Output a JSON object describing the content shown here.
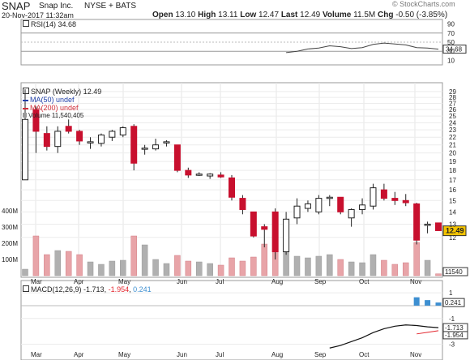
{
  "header": {
    "symbol": "SNAP",
    "company": "Snap Inc.",
    "exchange": "NYSE + BATS",
    "date": "20-Nov-2017 11:32am",
    "open_label": "Open",
    "open": "13.10",
    "high_label": "High",
    "high": "13.11",
    "low_label": "Low",
    "low": "12.47",
    "last_label": "Last",
    "last": "12.49",
    "volume_label": "Volume",
    "volume": "11.5M",
    "chg_label": "Chg",
    "chg": "-0.50 (-3.85%)",
    "watermark": "© StockCharts.com"
  },
  "rsi": {
    "legend": "RSI(14) 34.68",
    "current": "34.68"
  },
  "price": {
    "legend": "SNAP (Weekly) 12.49",
    "last_box": "12.49",
    "last_box_color": "#f5c400"
  },
  "ma50": {
    "legend": "MA(50) undef",
    "color": "#1f3fa8"
  },
  "ma200": {
    "legend": "MA(200) undef",
    "color": "#d0303a"
  },
  "volume": {
    "legend": "Volume 11,540,405",
    "box": "11540"
  },
  "macd": {
    "legend_name": "MACD(12,26,9)",
    "macd": "-1.713",
    "signal": "-1.954",
    "hist": "0.241",
    "box_hist": "0.241",
    "box_macd": "-1.713",
    "box_signal": "-1.954"
  },
  "colors": {
    "up": "#222222",
    "down": "#c8102e",
    "vol_up": "#b0b0b0",
    "vol_down": "#e8a4a8",
    "hist": "#3d8fd1",
    "signal": "#e3262e"
  },
  "chart_data": {
    "type": "candlestick",
    "title": "SNAP Snap Inc. NYSE + BATS",
    "x_tick_labels": [
      "Mar",
      "Apr",
      "May",
      "Jun",
      "Jul",
      "Aug",
      "Sep",
      "Oct",
      "Nov"
    ],
    "price_axis_ticks": [
      "29",
      "28",
      "27",
      "26",
      "25",
      "24",
      "23",
      "22",
      "21",
      "20",
      "19",
      "18",
      "17",
      "16",
      "15",
      "14",
      "13",
      "12"
    ],
    "volume_axis_ticks": [
      "400M",
      "300M",
      "200M",
      "100M"
    ],
    "rsi_axis_ticks": [
      "90",
      "70",
      "50",
      "30",
      "10"
    ],
    "macd_axis_ticks": [
      "1",
      "-1",
      "-3"
    ],
    "price_scale": "log",
    "weekly_bars": [
      {
        "o": 17.0,
        "h": 29.4,
        "l": 17.0,
        "c": 24.5,
        "v": 40
      },
      {
        "o": 26.0,
        "h": 26.5,
        "l": 20.0,
        "c": 22.8,
        "v": 245
      },
      {
        "o": 22.5,
        "h": 23.5,
        "l": 20.3,
        "c": 20.8,
        "v": 130
      },
      {
        "o": 20.8,
        "h": 23.5,
        "l": 20.0,
        "c": 22.8,
        "v": 155
      },
      {
        "o": 23.5,
        "h": 24.5,
        "l": 22.5,
        "c": 22.8,
        "v": 150
      },
      {
        "o": 22.8,
        "h": 23.0,
        "l": 21.0,
        "c": 21.5,
        "v": 130
      },
      {
        "o": 21.3,
        "h": 22.0,
        "l": 20.5,
        "c": 21.4,
        "v": 85
      },
      {
        "o": 21.2,
        "h": 22.5,
        "l": 20.8,
        "c": 22.3,
        "v": 70
      },
      {
        "o": 22.0,
        "h": 23.0,
        "l": 21.5,
        "c": 22.8,
        "v": 90
      },
      {
        "o": 22.3,
        "h": 23.5,
        "l": 22.0,
        "c": 23.3,
        "v": 95
      },
      {
        "o": 23.5,
        "h": 23.8,
        "l": 18.0,
        "c": 18.8,
        "v": 245
      },
      {
        "o": 20.5,
        "h": 21.0,
        "l": 19.8,
        "c": 20.6,
        "v": 190
      },
      {
        "o": 20.5,
        "h": 21.8,
        "l": 20.3,
        "c": 21.0,
        "v": 100
      },
      {
        "o": 21.3,
        "h": 21.6,
        "l": 20.8,
        "c": 21.4,
        "v": 75
      },
      {
        "o": 21.0,
        "h": 21.0,
        "l": 17.8,
        "c": 18.0,
        "v": 125
      },
      {
        "o": 18.0,
        "h": 18.3,
        "l": 17.2,
        "c": 17.5,
        "v": 90
      },
      {
        "o": 17.5,
        "h": 17.8,
        "l": 17.4,
        "c": 17.6,
        "v": 85
      },
      {
        "o": 17.4,
        "h": 17.7,
        "l": 17.1,
        "c": 17.6,
        "v": 75
      },
      {
        "o": 17.5,
        "h": 17.8,
        "l": 17.2,
        "c": 17.3,
        "v": 65
      },
      {
        "o": 17.2,
        "h": 17.5,
        "l": 15.0,
        "c": 15.3,
        "v": 110
      },
      {
        "o": 15.2,
        "h": 15.5,
        "l": 13.8,
        "c": 14.2,
        "v": 90
      },
      {
        "o": 14.0,
        "h": 14.0,
        "l": 12.0,
        "c": 12.1,
        "v": 115
      },
      {
        "o": 12.8,
        "h": 13.0,
        "l": 11.3,
        "c": 12.6,
        "v": 195
      },
      {
        "o": 14.0,
        "h": 14.3,
        "l": 10.5,
        "c": 11.0,
        "v": 250
      },
      {
        "o": 11.0,
        "h": 14.0,
        "l": 10.8,
        "c": 13.4,
        "v": 195
      },
      {
        "o": 13.5,
        "h": 15.2,
        "l": 13.0,
        "c": 14.5,
        "v": 120
      },
      {
        "o": 14.3,
        "h": 15.0,
        "l": 14.0,
        "c": 14.7,
        "v": 110
      },
      {
        "o": 14.0,
        "h": 15.5,
        "l": 13.8,
        "c": 15.2,
        "v": 120
      },
      {
        "o": 15.2,
        "h": 15.5,
        "l": 14.5,
        "c": 15.3,
        "v": 130
      },
      {
        "o": 15.3,
        "h": 15.3,
        "l": 13.8,
        "c": 14.0,
        "v": 100
      },
      {
        "o": 13.5,
        "h": 14.3,
        "l": 12.8,
        "c": 14.2,
        "v": 85
      },
      {
        "o": 14.2,
        "h": 15.2,
        "l": 13.8,
        "c": 14.6,
        "v": 80
      },
      {
        "o": 14.5,
        "h": 16.6,
        "l": 14.2,
        "c": 16.2,
        "v": 130
      },
      {
        "o": 16.0,
        "h": 16.6,
        "l": 15.0,
        "c": 15.2,
        "v": 95
      },
      {
        "o": 15.2,
        "h": 15.8,
        "l": 14.6,
        "c": 15.0,
        "v": 70
      },
      {
        "o": 15.0,
        "h": 15.6,
        "l": 14.5,
        "c": 14.8,
        "v": 80
      },
      {
        "o": 14.7,
        "h": 14.8,
        "l": 11.5,
        "c": 11.8,
        "v": 205
      },
      {
        "o": 13.0,
        "h": 13.2,
        "l": 12.3,
        "c": 13.0,
        "v": 95
      },
      {
        "o": 13.1,
        "h": 13.1,
        "l": 12.5,
        "c": 12.5,
        "v": 11.5
      }
    ],
    "rsi_values": [
      null,
      null,
      null,
      null,
      null,
      null,
      null,
      null,
      null,
      null,
      null,
      null,
      null,
      null,
      null,
      null,
      null,
      null,
      null,
      null,
      null,
      null,
      null,
      null,
      27,
      30,
      35,
      37,
      42,
      40,
      36,
      38,
      45,
      48,
      46,
      44,
      38,
      37,
      34.68
    ],
    "macd_line": [
      null,
      null,
      null,
      null,
      null,
      null,
      null,
      null,
      null,
      null,
      null,
      null,
      null,
      null,
      null,
      null,
      null,
      null,
      null,
      null,
      null,
      null,
      null,
      null,
      null,
      null,
      null,
      null,
      -3.3,
      -3.1,
      -2.8,
      -2.5,
      -2.1,
      -1.8,
      -1.6,
      -1.5,
      -1.55,
      -1.65,
      -1.713
    ],
    "signal_line": [
      null,
      null,
      null,
      null,
      null,
      null,
      null,
      null,
      null,
      null,
      null,
      null,
      null,
      null,
      null,
      null,
      null,
      null,
      null,
      null,
      null,
      null,
      null,
      null,
      null,
      null,
      null,
      null,
      null,
      null,
      null,
      null,
      null,
      null,
      null,
      null,
      -2.2,
      -2.08,
      -1.954
    ],
    "histogram": [
      null,
      null,
      null,
      null,
      null,
      null,
      null,
      null,
      null,
      null,
      null,
      null,
      null,
      null,
      null,
      null,
      null,
      null,
      null,
      null,
      null,
      null,
      null,
      null,
      null,
      null,
      null,
      null,
      null,
      null,
      null,
      null,
      null,
      null,
      null,
      null,
      0.65,
      0.43,
      0.241
    ],
    "rsi_range": [
      0,
      100
    ],
    "price_range": [
      10.5,
      30
    ],
    "volume_range": [
      0,
      500
    ],
    "macd_range": [
      -3.6,
      1.7
    ],
    "grid": true
  }
}
